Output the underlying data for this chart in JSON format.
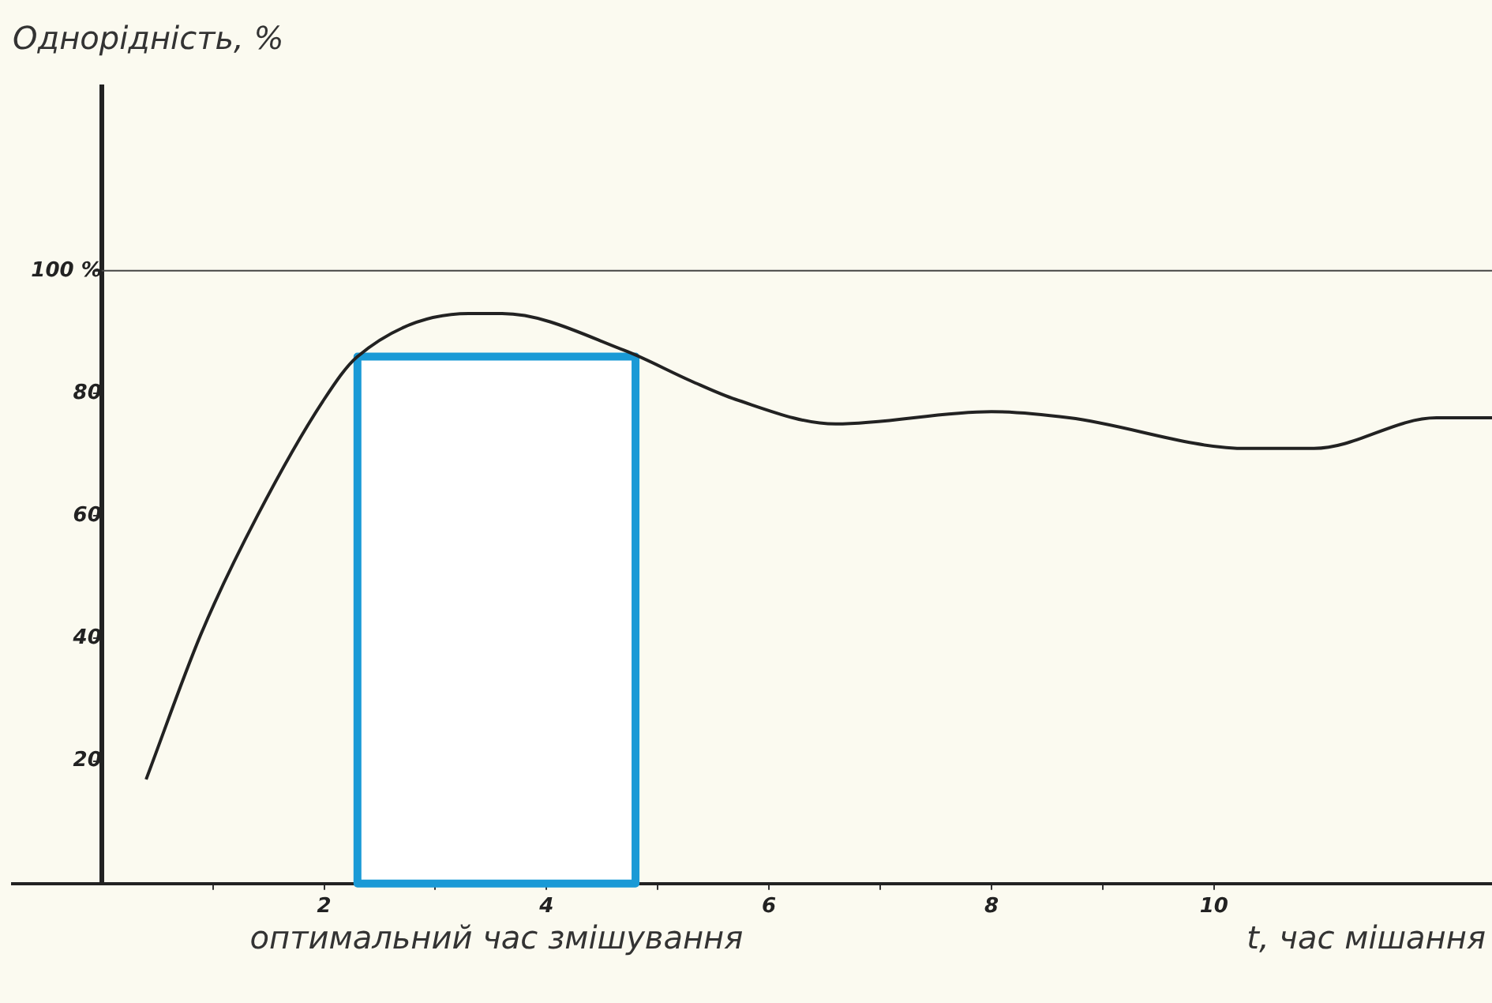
{
  "chart_data": {
    "type": "line",
    "ylabel": "Однорідність, %",
    "xlabel": "t, час мішання",
    "xlim": [
      -0.8,
      12.5
    ],
    "ylim": [
      0,
      130
    ],
    "xticks": [
      {
        "value": 1,
        "label": null
      },
      2,
      {
        "value": 3,
        "label": null
      },
      4,
      {
        "value": 5,
        "label": null
      },
      6,
      {
        "value": 7,
        "label": null
      },
      8,
      {
        "value": 9,
        "label": null
      },
      10
    ],
    "yticks": [
      20,
      40,
      60,
      80,
      {
        "value": 100,
        "label": "100 %"
      }
    ],
    "ref_lines": [
      {
        "axis": "y",
        "value": 100,
        "label": null,
        "color": "#444444"
      }
    ],
    "series": [
      {
        "name": "оптимальний час змішування",
        "type": "area",
        "color": "#1a9ad6",
        "x": [
          2.3,
          4.8
        ],
        "values": [
          86,
          86
        ]
      },
      {
        "color": "#222222",
        "x": [
          0.4,
          0.9,
          1.4,
          2.0,
          2.3,
          3.3,
          3.6,
          4.7,
          5.3,
          5.7,
          6.6,
          8.0,
          8.7,
          10.3,
          10.9,
          12.0,
          12.5
        ],
        "values": [
          17,
          41,
          60,
          79,
          86,
          93,
          93,
          87,
          82,
          79,
          75,
          77,
          76,
          71,
          71,
          76,
          76
        ]
      }
    ],
    "grid": false,
    "legend": false,
    "marker": "none",
    "line_style": "solid"
  }
}
